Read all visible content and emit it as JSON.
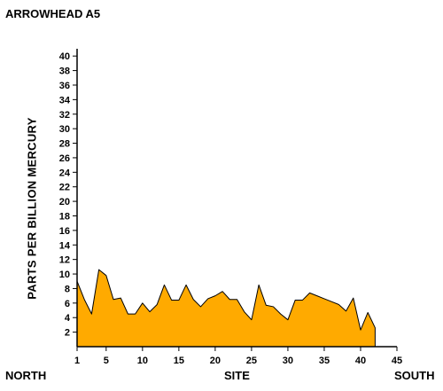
{
  "chart_data": {
    "type": "area",
    "title": "ARROWHEAD A5",
    "ylabel": "PARTS PER BILLION MERCURY",
    "xlabel": "SITE",
    "xlim": [
      1,
      45
    ],
    "ylim": [
      0,
      41
    ],
    "x_ticks": [
      1,
      5,
      10,
      15,
      20,
      25,
      30,
      35,
      40,
      45
    ],
    "y_ticks": [
      2,
      4,
      6,
      8,
      10,
      12,
      14,
      16,
      18,
      20,
      22,
      24,
      26,
      28,
      30,
      32,
      34,
      36,
      38,
      40
    ],
    "annotations": {
      "left": "NORTH",
      "right": "SOUTH"
    },
    "fill_color": "#FFAA00",
    "series": [
      {
        "x": [
          1,
          2,
          3,
          4,
          5,
          6,
          7,
          8,
          9,
          10,
          11,
          12,
          13,
          14,
          15,
          16,
          17,
          18,
          19,
          20,
          21,
          22,
          23,
          24,
          25,
          26,
          27,
          28,
          29,
          30,
          31,
          32,
          33,
          34,
          35,
          36,
          37,
          38,
          39,
          40,
          41,
          42
        ],
        "y": [
          9,
          6.5,
          4.5,
          10.6,
          9.8,
          6.5,
          6.7,
          4.5,
          4.5,
          6,
          4.8,
          5.8,
          8.5,
          6.4,
          6.4,
          8.5,
          6.5,
          5.5,
          6.6,
          7,
          7.6,
          6.5,
          6.5,
          4.8,
          3.7,
          8.5,
          5.7,
          5.5,
          4.5,
          3.7,
          6.4,
          6.4,
          7.4,
          7,
          6.6,
          6.2,
          5.8,
          4.9,
          6.7,
          2.3,
          4.7,
          2.6
        ]
      }
    ]
  }
}
